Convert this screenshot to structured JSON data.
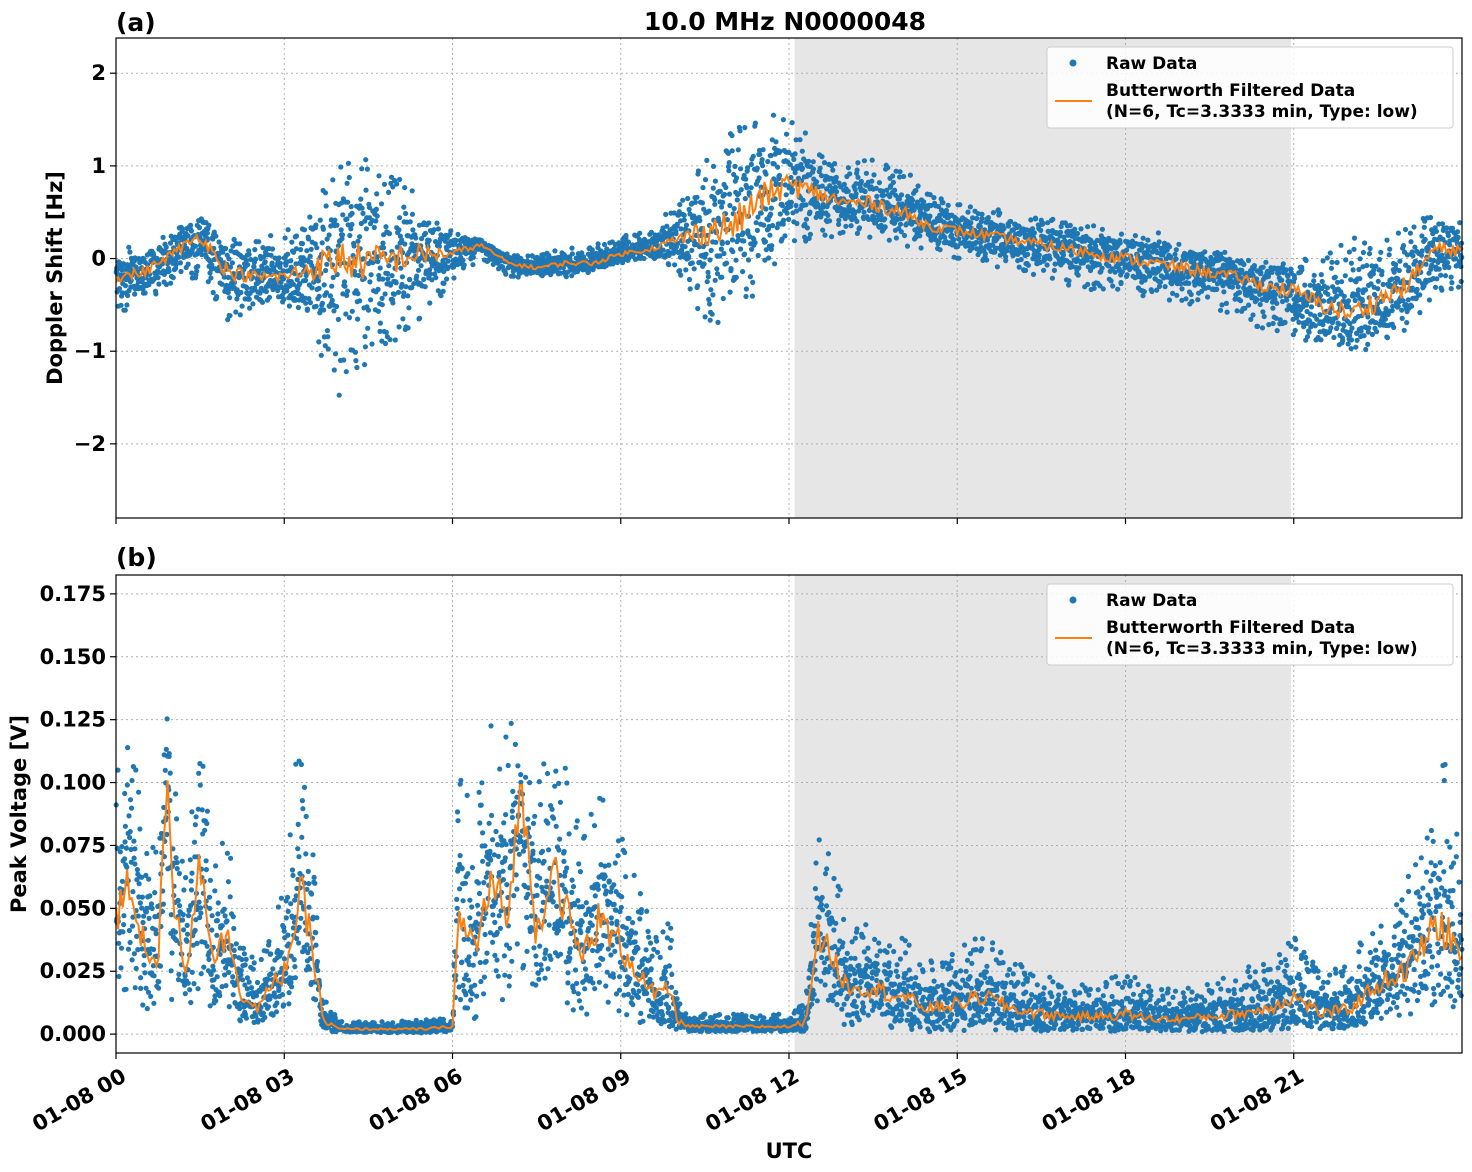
{
  "figure": {
    "title": "10.0 MHz N0000048",
    "xlabel": "UTC"
  },
  "colors": {
    "raw": "#1f77b4",
    "filtered": "#ff7f0e",
    "night_shade": "#e6e6e6"
  },
  "chart_data": [
    {
      "type": "scatter",
      "panel_label": "(a)",
      "ylabel": "Doppler Shift [Hz]",
      "ylim": [
        -2.8,
        2.38
      ],
      "yticks": [
        -2,
        -1,
        0,
        1,
        2
      ],
      "ytick_labels": [
        "−2",
        "−1",
        "0",
        "1",
        "2"
      ],
      "xlim_hours": [
        0,
        24
      ],
      "xticks_hours": [
        0,
        3,
        6,
        9,
        12,
        15,
        18,
        21
      ],
      "xtick_labels": [
        "01-08 00",
        "01-08 03",
        "01-08 06",
        "01-08 09",
        "01-08 12",
        "01-08 15",
        "01-08 18",
        "01-08 21"
      ],
      "grid": true,
      "legend": [
        "Raw Data",
        "Butterworth Filtered Data",
        "(N=6, Tc=3.3333 min, Type: low)"
      ],
      "legend_position": "top-right",
      "shaded_interval_hours": [
        12.1,
        20.95
      ],
      "filtered": {
        "x": [
          0,
          0.5,
          1,
          1.5,
          2,
          2.5,
          3,
          3.5,
          4,
          4.5,
          5,
          5.5,
          6,
          6.5,
          7,
          7.5,
          8,
          8.5,
          9,
          9.5,
          10,
          10.5,
          11,
          11.5,
          12,
          12.5,
          13,
          13.5,
          14,
          14.5,
          15,
          15.5,
          16,
          16.5,
          17,
          17.5,
          18,
          18.5,
          19,
          19.5,
          20,
          20.5,
          21,
          21.5,
          22,
          22.5,
          23,
          23.5,
          24
        ],
        "y": [
          -0.2,
          -0.15,
          0.05,
          0.25,
          -0.15,
          -0.2,
          -0.2,
          -0.1,
          0,
          -0.05,
          0,
          0.05,
          0.05,
          0.15,
          -0.05,
          -0.1,
          -0.05,
          -0.05,
          0.05,
          0.1,
          0.2,
          0.3,
          0.35,
          0.65,
          0.8,
          0.7,
          0.6,
          0.6,
          0.5,
          0.35,
          0.3,
          0.25,
          0.2,
          0.15,
          0.1,
          0.05,
          0,
          -0.05,
          -0.1,
          -0.15,
          -0.2,
          -0.3,
          -0.35,
          -0.5,
          -0.6,
          -0.45,
          -0.3,
          0.1,
          0.1
        ]
      },
      "raw_band": {
        "x": [
          0,
          0.5,
          1,
          1.5,
          2,
          2.5,
          3,
          3.5,
          4,
          4.5,
          5,
          5.5,
          6,
          6.5,
          7,
          7.5,
          8,
          8.5,
          9,
          9.5,
          10,
          10.5,
          11,
          11.5,
          12,
          12.5,
          13,
          13.5,
          14,
          14.5,
          15,
          15.5,
          16,
          16.5,
          17,
          17.5,
          18,
          18.5,
          19,
          19.5,
          20,
          20.5,
          21,
          21.5,
          22,
          22.5,
          23,
          23.5,
          24
        ],
        "lower": [
          -0.6,
          -0.5,
          -0.3,
          -0.2,
          -0.7,
          -0.5,
          -0.5,
          -0.9,
          -1.5,
          -1.1,
          -0.9,
          -0.6,
          -0.3,
          0,
          -0.2,
          -0.2,
          -0.2,
          -0.15,
          -0.05,
          0,
          -0.1,
          -0.7,
          -0.7,
          -0.3,
          0.1,
          0.2,
          0.25,
          0.2,
          0.1,
          0.1,
          0,
          -0.1,
          -0.1,
          -0.2,
          -0.3,
          -0.35,
          -0.4,
          -0.45,
          -0.5,
          -0.55,
          -0.6,
          -0.8,
          -0.9,
          -0.9,
          -1,
          -1,
          -0.8,
          -0.4,
          -0.35
        ],
        "upper": [
          0.1,
          0.15,
          0.3,
          0.5,
          0.25,
          0.2,
          0.3,
          0.6,
          1.0,
          1.1,
          0.9,
          0.6,
          0.3,
          0.2,
          0.05,
          0.05,
          0.1,
          0.15,
          0.25,
          0.3,
          0.6,
          1.1,
          1.4,
          1.6,
          1.5,
          1.3,
          1.0,
          1.1,
          1.0,
          0.7,
          0.6,
          0.55,
          0.5,
          0.45,
          0.4,
          0.35,
          0.3,
          0.3,
          0.2,
          0.1,
          0.05,
          0,
          0,
          0.1,
          0.2,
          0.35,
          0.4,
          0.5,
          0.45
        ]
      }
    },
    {
      "type": "scatter",
      "panel_label": "(b)",
      "ylabel": "Peak Voltage [V]",
      "ylim": [
        -0.0075,
        0.1825
      ],
      "yticks": [
        0,
        0.025,
        0.05,
        0.075,
        0.1,
        0.125,
        0.15,
        0.175
      ],
      "ytick_labels": [
        "0.000",
        "0.025",
        "0.050",
        "0.075",
        "0.100",
        "0.125",
        "0.150",
        "0.175"
      ],
      "xlim_hours": [
        0,
        24
      ],
      "xticks_hours": [
        0,
        3,
        6,
        9,
        12,
        15,
        18,
        21
      ],
      "xtick_labels": [
        "01-08 00",
        "01-08 03",
        "01-08 06",
        "01-08 09",
        "01-08 12",
        "01-08 15",
        "01-08 18",
        "01-08 21"
      ],
      "grid": true,
      "legend": [
        "Raw Data",
        "Butterworth Filtered Data",
        "(N=6, Tc=3.3333 min, Type: low)"
      ],
      "legend_position": "top-right",
      "shaded_interval_hours": [
        12.1,
        20.95
      ],
      "filtered": {
        "x": [
          0,
          0.25,
          0.5,
          0.75,
          0.9,
          1,
          1.25,
          1.5,
          1.75,
          2,
          2.25,
          2.5,
          3,
          3.3,
          3.5,
          3.7,
          4,
          4.5,
          5,
          5.5,
          6,
          6.1,
          6.4,
          6.7,
          7,
          7.2,
          7.5,
          7.8,
          8,
          8.3,
          8.6,
          9,
          9.3,
          9.6,
          9.9,
          10,
          10.3,
          11,
          11.5,
          12,
          12.3,
          12.5,
          12.8,
          13,
          13.5,
          14,
          14.5,
          15,
          15.5,
          16,
          16.5,
          17,
          17.5,
          18,
          18.5,
          19,
          19.5,
          20,
          20.5,
          21,
          21.5,
          22,
          22.5,
          23,
          23.3,
          23.6,
          24
        ],
        "y": [
          0.045,
          0.06,
          0.035,
          0.03,
          0.1,
          0.06,
          0.025,
          0.07,
          0.03,
          0.04,
          0.015,
          0.01,
          0.025,
          0.055,
          0.035,
          0.005,
          0.002,
          0.002,
          0.002,
          0.002,
          0.003,
          0.045,
          0.035,
          0.06,
          0.045,
          0.1,
          0.04,
          0.07,
          0.05,
          0.03,
          0.045,
          0.035,
          0.025,
          0.015,
          0.018,
          0.005,
          0.003,
          0.003,
          0.003,
          0.003,
          0.005,
          0.04,
          0.03,
          0.02,
          0.018,
          0.015,
          0.01,
          0.012,
          0.015,
          0.01,
          0.008,
          0.007,
          0.007,
          0.008,
          0.006,
          0.006,
          0.007,
          0.008,
          0.01,
          0.015,
          0.008,
          0.01,
          0.02,
          0.025,
          0.035,
          0.045,
          0.03
        ]
      },
      "raw_band": {
        "x": [
          0,
          0.25,
          0.5,
          0.75,
          0.9,
          1,
          1.25,
          1.5,
          1.75,
          2,
          2.25,
          2.5,
          3,
          3.3,
          3.5,
          3.7,
          4,
          4.5,
          5,
          5.5,
          6,
          6.1,
          6.4,
          6.7,
          7,
          7.2,
          7.5,
          7.8,
          8,
          8.3,
          8.6,
          9,
          9.3,
          9.6,
          9.9,
          10,
          10.3,
          11,
          11.5,
          12,
          12.3,
          12.5,
          12.8,
          13,
          13.5,
          14,
          14.5,
          15,
          15.5,
          16,
          16.5,
          17,
          17.5,
          18,
          18.5,
          19,
          19.5,
          20,
          20.5,
          21,
          21.5,
          22,
          22.5,
          23,
          23.3,
          23.6,
          24
        ],
        "lower": [
          0.01,
          0.015,
          0.01,
          0.005,
          0.03,
          0.01,
          0.005,
          0.02,
          0.005,
          0.01,
          0.004,
          0.003,
          0.008,
          0.02,
          0.01,
          0.001,
          0.0005,
          0.0005,
          0.0005,
          0.0005,
          0.001,
          0.01,
          0.005,
          0.015,
          0.01,
          0.03,
          0.01,
          0.02,
          0.01,
          0.005,
          0.01,
          0.005,
          0.005,
          0.002,
          0.003,
          0.001,
          0.001,
          0.001,
          0.001,
          0.001,
          0.001,
          0.01,
          0.005,
          0.003,
          0.003,
          0.002,
          0.001,
          0.001,
          0.002,
          0.001,
          0.001,
          0.001,
          0.001,
          0.001,
          0.001,
          0.001,
          0.001,
          0.001,
          0.001,
          0.002,
          0.001,
          0.002,
          0.004,
          0.006,
          0.01,
          0.012,
          0.008
        ],
        "upper": [
          0.105,
          0.12,
          0.09,
          0.07,
          0.14,
          0.12,
          0.06,
          0.13,
          0.07,
          0.09,
          0.035,
          0.03,
          0.06,
          0.13,
          0.08,
          0.015,
          0.005,
          0.005,
          0.005,
          0.006,
          0.007,
          0.11,
          0.09,
          0.13,
          0.12,
          0.14,
          0.1,
          0.12,
          0.11,
          0.08,
          0.1,
          0.08,
          0.06,
          0.04,
          0.045,
          0.015,
          0.008,
          0.008,
          0.008,
          0.008,
          0.015,
          0.08,
          0.07,
          0.05,
          0.045,
          0.04,
          0.03,
          0.035,
          0.04,
          0.03,
          0.025,
          0.02,
          0.02,
          0.025,
          0.018,
          0.018,
          0.02,
          0.025,
          0.03,
          0.04,
          0.025,
          0.03,
          0.05,
          0.06,
          0.08,
          0.12,
          0.07
        ]
      }
    }
  ]
}
